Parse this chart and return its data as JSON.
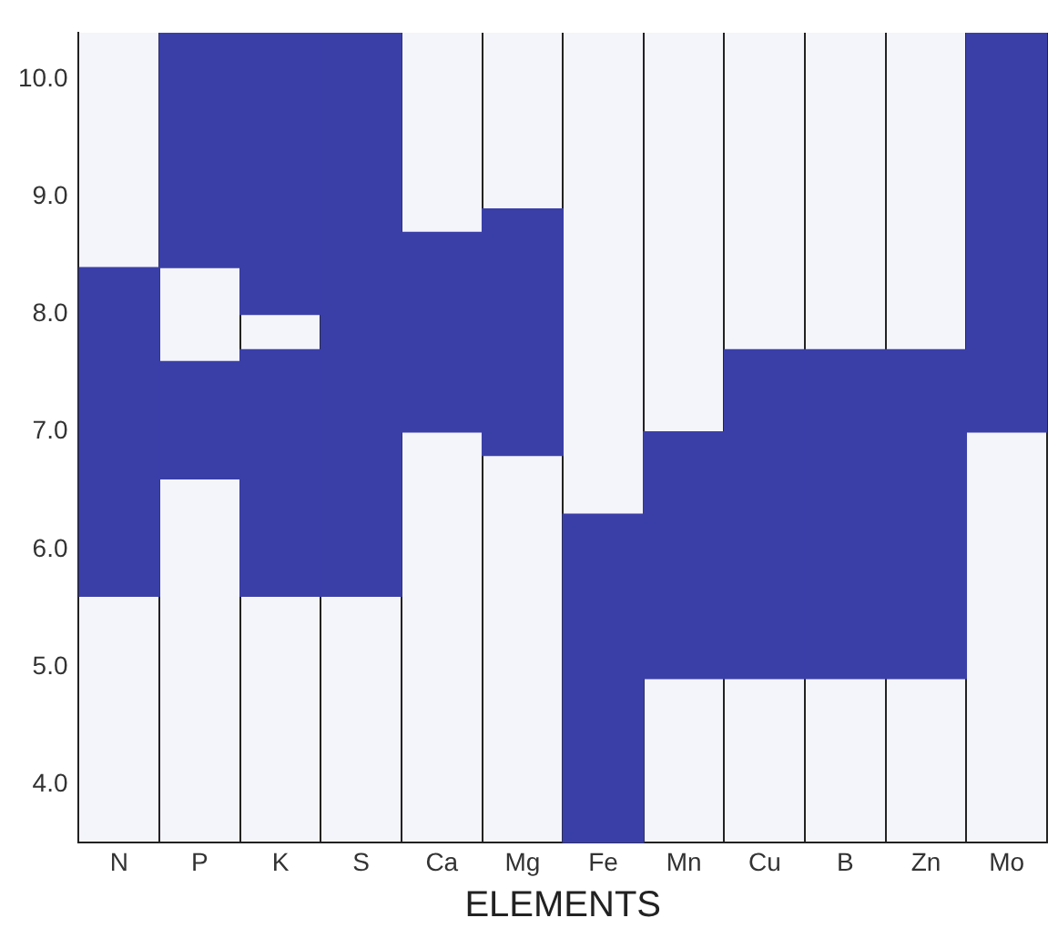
{
  "chart_data": {
    "type": "bar",
    "xlabel": "ELEMENTS",
    "categories": [
      "N",
      "P",
      "K",
      "S",
      "Ca",
      "Mg",
      "Fe",
      "Mn",
      "Cu",
      "B",
      "Zn",
      "Mo"
    ],
    "series": [
      {
        "color": "#3a3fa8",
        "base": [
          5.6,
          6.6,
          5.6,
          5.6,
          7.0,
          6.8,
          3.5,
          4.9,
          4.9,
          4.9,
          4.9,
          7.0
        ],
        "values": [
          2.8,
          1.0,
          2.1,
          4.8,
          1.7,
          2.1,
          2.8,
          2.1,
          2.8,
          2.8,
          2.8,
          3.4
        ]
      },
      {
        "color": "#3a3fa8",
        "base": [
          null,
          8.4,
          8.0,
          null,
          null,
          null,
          null,
          null,
          null,
          null,
          null,
          null
        ],
        "values": [
          null,
          2.0,
          2.4,
          null,
          null,
          null,
          null,
          null,
          null,
          null,
          null,
          null
        ]
      }
    ],
    "ylim": [
      3.5,
      10.4
    ],
    "yticks": [
      {
        "value": 4,
        "label": "4.0"
      },
      {
        "value": 5,
        "label": "5.0"
      },
      {
        "value": 6,
        "label": "6.0"
      },
      {
        "value": 7,
        "label": "7.0"
      },
      {
        "value": 8,
        "label": "8.0"
      },
      {
        "value": 9,
        "label": "9.0"
      },
      {
        "value": 10,
        "label": "10.0"
      }
    ],
    "grid": "x",
    "legend": false
  }
}
